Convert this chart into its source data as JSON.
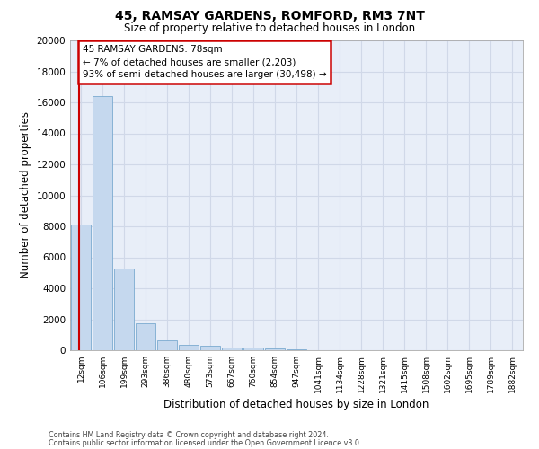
{
  "title1": "45, RAMSAY GARDENS, ROMFORD, RM3 7NT",
  "title2": "Size of property relative to detached houses in London",
  "xlabel": "Distribution of detached houses by size in London",
  "ylabel": "Number of detached properties",
  "bar_color": "#c5d8ee",
  "bar_edge_color": "#7aaad0",
  "categories": [
    "12sqm",
    "106sqm",
    "199sqm",
    "293sqm",
    "386sqm",
    "480sqm",
    "573sqm",
    "667sqm",
    "760sqm",
    "854sqm",
    "947sqm",
    "1041sqm",
    "1134sqm",
    "1228sqm",
    "1321sqm",
    "1415sqm",
    "1508sqm",
    "1602sqm",
    "1695sqm",
    "1789sqm",
    "1882sqm"
  ],
  "values": [
    8100,
    16400,
    5300,
    1750,
    650,
    350,
    270,
    200,
    170,
    130,
    40,
    20,
    10,
    5,
    3,
    2,
    1,
    1,
    1,
    1,
    1
  ],
  "ylim": [
    0,
    20000
  ],
  "yticks": [
    0,
    2000,
    4000,
    6000,
    8000,
    10000,
    12000,
    14000,
    16000,
    18000,
    20000
  ],
  "redline_x": -0.08,
  "redline_color": "#cc0000",
  "annotation_line1": "45 RAMSAY GARDENS: 78sqm",
  "annotation_line2": "← 7% of detached houses are smaller (2,203)",
  "annotation_line3": "93% of semi-detached houses are larger (30,498) →",
  "annotation_box_facecolor": "#ffffff",
  "annotation_box_edgecolor": "#cc0000",
  "background_color": "#e8eef8",
  "grid_color": "#d0d8e8",
  "footer1": "Contains HM Land Registry data © Crown copyright and database right 2024.",
  "footer2": "Contains public sector information licensed under the Open Government Licence v3.0."
}
